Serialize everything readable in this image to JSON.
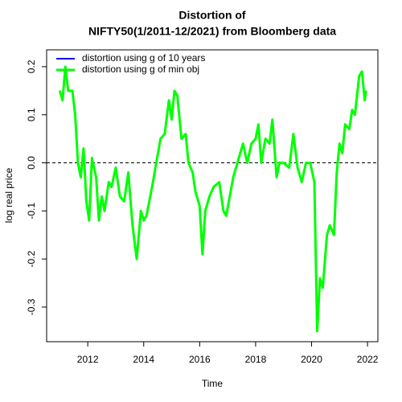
{
  "chart_data": {
    "type": "line",
    "title": [
      "Distortion of",
      "NIFTY50(1/2011-12/2021) from Bloomberg data"
    ],
    "xlabel": "Time",
    "ylabel": "log real price",
    "x": [
      2011.0,
      2011.1,
      2011.2,
      2011.3,
      2011.45,
      2011.55,
      2011.65,
      2011.75,
      2011.85,
      2011.95,
      2012.05,
      2012.15,
      2012.3,
      2012.4,
      2012.5,
      2012.6,
      2012.75,
      2012.85,
      2013.0,
      2013.15,
      2013.3,
      2013.45,
      2013.6,
      2013.75,
      2013.9,
      2014.0,
      2014.1,
      2014.3,
      2014.45,
      2014.6,
      2014.75,
      2014.9,
      2015.0,
      2015.1,
      2015.2,
      2015.35,
      2015.5,
      2015.6,
      2015.75,
      2015.85,
      2016.0,
      2016.1,
      2016.2,
      2016.35,
      2016.5,
      2016.7,
      2016.85,
      2016.95,
      2017.2,
      2017.4,
      2017.55,
      2017.7,
      2017.85,
      2018.0,
      2018.1,
      2018.2,
      2018.35,
      2018.5,
      2018.6,
      2018.75,
      2018.85,
      2019.0,
      2019.2,
      2019.35,
      2019.5,
      2019.65,
      2019.8,
      2019.95,
      2020.1,
      2020.2,
      2020.3,
      2020.4,
      2020.55,
      2020.65,
      2020.8,
      2020.9,
      2021.0,
      2021.1,
      2021.2,
      2021.35,
      2021.45,
      2021.55,
      2021.7,
      2021.8,
      2021.9,
      2021.95
    ],
    "series": [
      {
        "name": "distortion using g of 10 years",
        "color": "#0000ff",
        "width": 2,
        "values": [
          0.15,
          0.13,
          0.2,
          0.15,
          0.15,
          0.1,
          0.0,
          -0.03,
          0.03,
          -0.08,
          -0.12,
          0.01,
          -0.03,
          -0.12,
          -0.07,
          -0.1,
          -0.04,
          -0.05,
          -0.01,
          -0.07,
          -0.08,
          -0.02,
          -0.13,
          -0.2,
          -0.1,
          -0.12,
          -0.11,
          -0.05,
          0.0,
          0.05,
          0.06,
          0.13,
          0.09,
          0.15,
          0.14,
          0.05,
          0.06,
          0.0,
          -0.02,
          -0.06,
          -0.09,
          -0.19,
          -0.1,
          -0.07,
          -0.05,
          -0.04,
          -0.1,
          -0.11,
          -0.03,
          0.01,
          0.04,
          0.0,
          0.04,
          0.05,
          0.08,
          0.0,
          0.05,
          0.04,
          0.09,
          -0.03,
          0.0,
          0.0,
          -0.01,
          0.06,
          -0.01,
          -0.04,
          0.0,
          0.0,
          -0.04,
          -0.35,
          -0.24,
          -0.26,
          -0.15,
          -0.13,
          -0.15,
          -0.02,
          0.04,
          0.02,
          0.08,
          0.07,
          0.11,
          0.1,
          0.18,
          0.19,
          0.13,
          0.15
        ]
      },
      {
        "name": "distortion using g of min obj",
        "color": "#00ff00",
        "width": 3,
        "values": [
          0.15,
          0.13,
          0.2,
          0.15,
          0.15,
          0.1,
          0.0,
          -0.03,
          0.03,
          -0.08,
          -0.12,
          0.01,
          -0.03,
          -0.12,
          -0.07,
          -0.1,
          -0.04,
          -0.05,
          -0.01,
          -0.07,
          -0.08,
          -0.02,
          -0.13,
          -0.2,
          -0.1,
          -0.12,
          -0.11,
          -0.05,
          0.0,
          0.05,
          0.06,
          0.13,
          0.09,
          0.15,
          0.14,
          0.05,
          0.06,
          0.0,
          -0.02,
          -0.06,
          -0.09,
          -0.19,
          -0.1,
          -0.07,
          -0.05,
          -0.04,
          -0.1,
          -0.11,
          -0.03,
          0.01,
          0.04,
          0.0,
          0.04,
          0.05,
          0.08,
          0.0,
          0.05,
          0.04,
          0.09,
          -0.03,
          0.0,
          0.0,
          -0.01,
          0.06,
          -0.01,
          -0.04,
          0.0,
          0.0,
          -0.04,
          -0.35,
          -0.24,
          -0.26,
          -0.15,
          -0.13,
          -0.15,
          -0.02,
          0.04,
          0.02,
          0.08,
          0.07,
          0.11,
          0.1,
          0.18,
          0.19,
          0.13,
          0.15
        ]
      }
    ],
    "hline": 0,
    "xlim": [
      2010.53,
      2022.37
    ],
    "xticks": [
      2012,
      2014,
      2016,
      2018,
      2020,
      2022
    ],
    "ylim": [
      -0.372,
      0.235
    ],
    "yticks": [
      -0.3,
      -0.2,
      -0.1,
      {
        "value": 0,
        "label": "0.0"
      },
      0.1,
      0.2
    ],
    "legend": "top-left"
  }
}
